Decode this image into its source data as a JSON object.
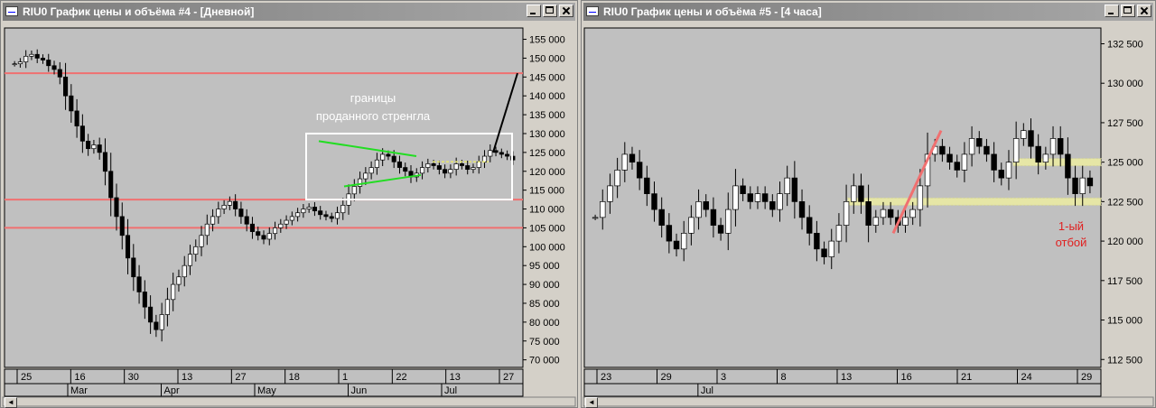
{
  "windows": [
    {
      "title": "RIU0 График цены и объёма #4 - [Дневной]",
      "price_axis": [
        "155 000",
        "150 000",
        "145 000",
        "140 000",
        "135 000",
        "130 000",
        "125 000",
        "120 000",
        "115 000",
        "110 000",
        "105 000",
        "100 000",
        "95 000",
        "90 000",
        "85 000",
        "80 000",
        "75 000",
        "70 000"
      ],
      "date_ticks": [
        "25",
        "16",
        "30",
        "13",
        "27",
        "18",
        "1",
        "22",
        "13",
        "27"
      ],
      "month_ticks": [
        "Mar",
        "Apr",
        "May",
        "Jun",
        "Jul"
      ],
      "annotation": [
        "границы",
        "проданного стренгла"
      ]
    },
    {
      "title": "RIU0 График цены и объёма #5 - [4 часа]",
      "price_axis": [
        "132 500",
        "130 000",
        "127 500",
        "125 000",
        "122 500",
        "120 000",
        "117 500",
        "115 000",
        "112 500"
      ],
      "date_ticks": [
        "23",
        "29",
        "3",
        "8",
        "13",
        "16",
        "21",
        "24",
        "29"
      ],
      "month_ticks": [
        "Jul"
      ],
      "annotation": [
        "1-ый",
        "отбой"
      ]
    }
  ],
  "chart_data": [
    {
      "type": "candlestick",
      "timeframe": "Дневной",
      "ylim": [
        68000,
        158000
      ],
      "horizontal_levels": [
        146000,
        112500,
        105000
      ],
      "closes": [
        148500,
        149000,
        150500,
        151000,
        150000,
        149500,
        148000,
        147000,
        145000,
        140000,
        136000,
        132000,
        128000,
        126000,
        127000,
        125000,
        120000,
        113000,
        108000,
        103000,
        97000,
        92000,
        88000,
        84000,
        80000,
        78000,
        82000,
        86000,
        90000,
        92000,
        95000,
        98000,
        100000,
        103000,
        106000,
        108000,
        110000,
        111000,
        112000,
        110000,
        108000,
        106000,
        104000,
        103000,
        102000,
        103500,
        105000,
        106000,
        107000,
        108000,
        109000,
        110000,
        110500,
        109500,
        108500,
        108000,
        107500,
        109000,
        111000,
        114000,
        116000,
        118000,
        119500,
        121000,
        123000,
        124500,
        124000,
        122500,
        121000,
        120000,
        118500,
        119500,
        121000,
        122000,
        121500,
        120500,
        119500,
        120500,
        122000,
        121500,
        120500,
        121000,
        122500,
        124000,
        125500,
        125000,
        124500,
        124000,
        123000
      ],
      "date_ticks": [
        "25",
        "16",
        "30",
        "13",
        "27",
        "18",
        "1",
        "22",
        "13",
        "27"
      ],
      "month_ticks": [
        "Mar",
        "Apr",
        "May",
        "Jun",
        "Jul"
      ],
      "annotation": "границы проданного стренгла"
    },
    {
      "type": "candlestick",
      "timeframe": "4 часа",
      "ylim": [
        112000,
        133500
      ],
      "levels": [
        122500,
        125000
      ],
      "closes": [
        121500,
        122500,
        123500,
        124500,
        125500,
        125000,
        124000,
        123000,
        122000,
        121000,
        120000,
        119500,
        120500,
        121500,
        122500,
        122000,
        121000,
        120500,
        122000,
        123500,
        123000,
        122500,
        123000,
        122500,
        122000,
        123000,
        124000,
        122500,
        121500,
        120500,
        119500,
        119000,
        120000,
        121000,
        122500,
        123500,
        122500,
        121000,
        121500,
        122000,
        121500,
        121000,
        121500,
        122000,
        123500,
        125500,
        126000,
        125500,
        125000,
        124500,
        125500,
        126500,
        126000,
        125500,
        124500,
        124000,
        125000,
        126500,
        127000,
        126000,
        125000,
        125500,
        126500,
        125500,
        124000,
        123000,
        124000,
        123500
      ]
    }
  ]
}
